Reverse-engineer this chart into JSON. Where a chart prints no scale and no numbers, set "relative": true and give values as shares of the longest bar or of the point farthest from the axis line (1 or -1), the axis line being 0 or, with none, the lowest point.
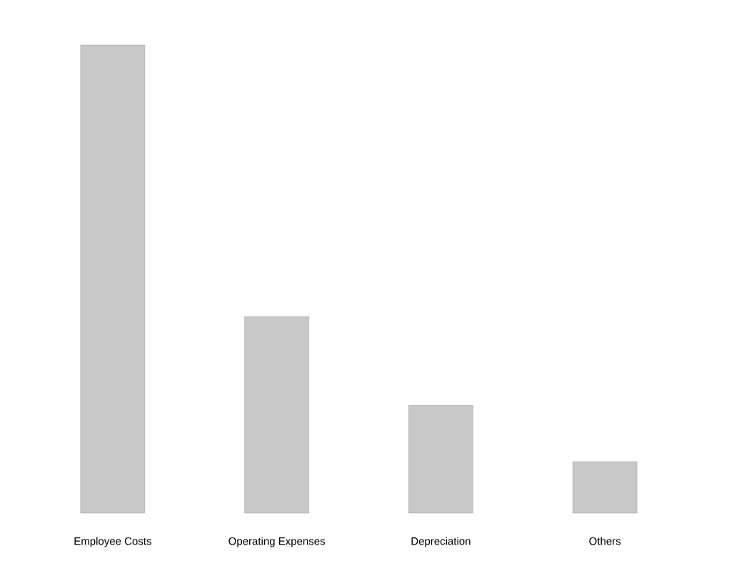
{
  "chart_data": {
    "type": "bar",
    "relative": true,
    "categories": [
      "Employee Costs",
      "Operating Expenses",
      "Depreciation",
      "Others"
    ],
    "values": [
      1,
      0.42,
      0.23,
      0.11
    ],
    "color": "#c8c8c8"
  }
}
